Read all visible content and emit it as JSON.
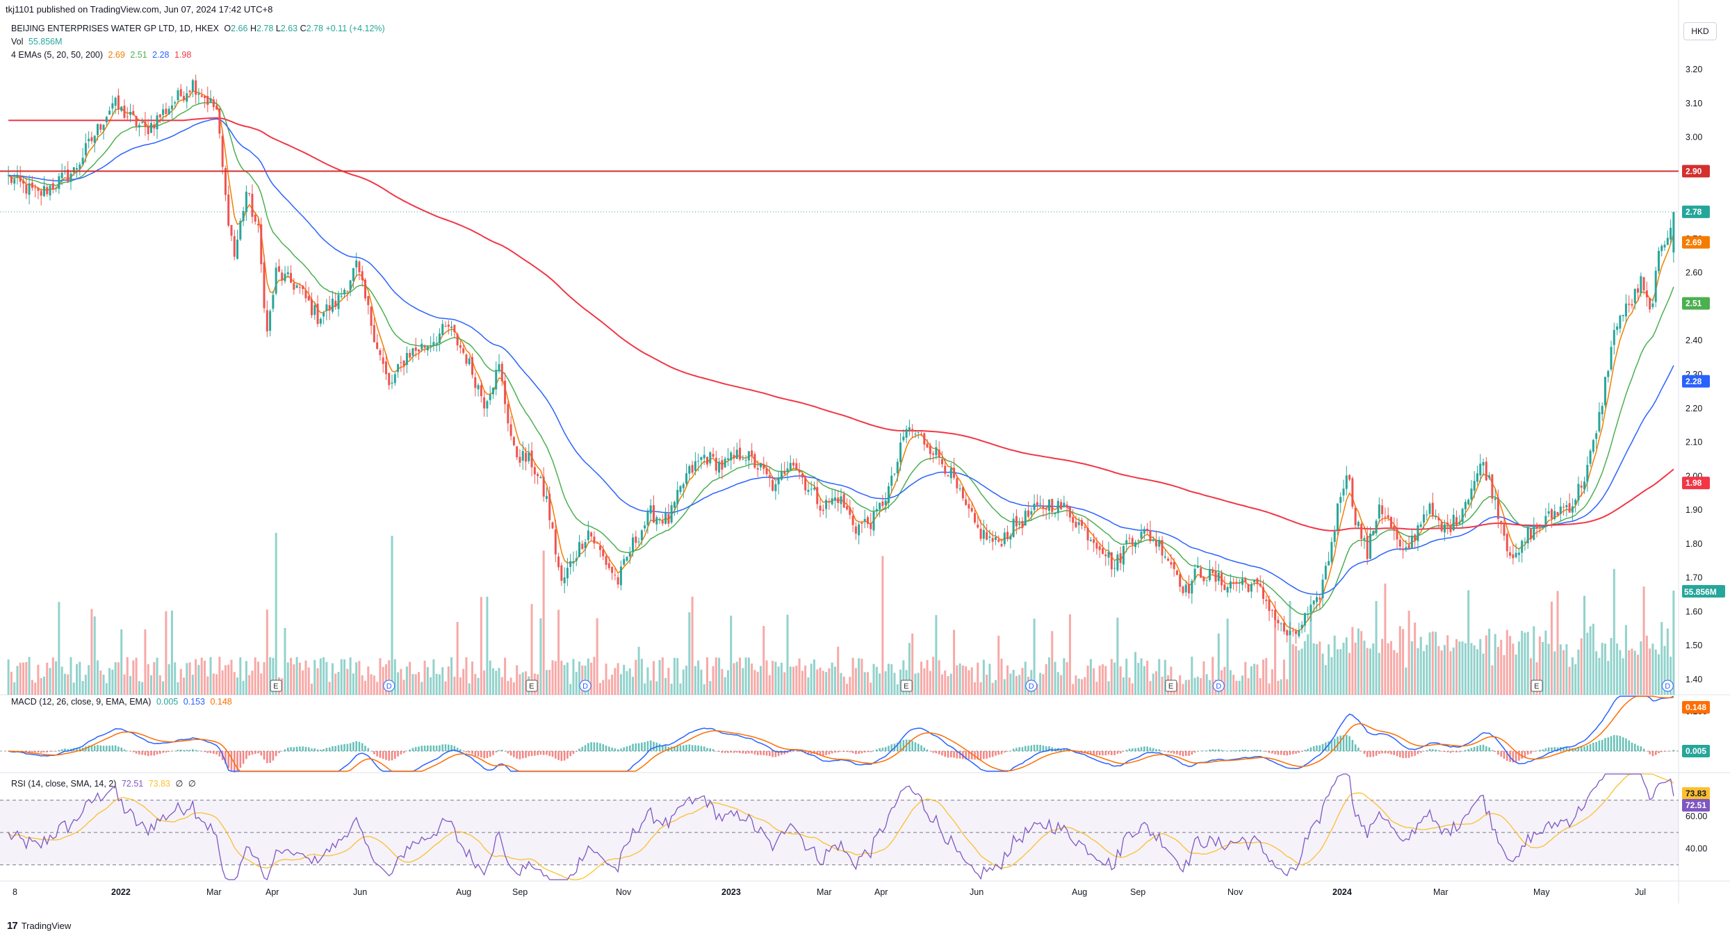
{
  "header": {
    "published": "tkj1101 published on TradingView.com, Jun 07, 2024 17:42 UTC+8",
    "symbol": "BEIJING ENTERPRISES WATER GP LTD, 1D, HKEX",
    "ohlc": {
      "o_label": "O",
      "o": "2.66",
      "h_label": "H",
      "h": "2.78",
      "l_label": "L",
      "l": "2.63",
      "c_label": "C",
      "c": "2.78",
      "change": "+0.11 (+4.12%)"
    },
    "vol_label": "Vol",
    "vol_value": "55.856M",
    "ema_label": "4 EMAs (5, 20, 50, 200)",
    "ema_values": [
      "2.69",
      "2.51",
      "2.28",
      "1.98"
    ],
    "currency": "HKD"
  },
  "macd_legend": {
    "label": "MACD (12, 26, close, 9, EMA, EMA)",
    "values": [
      "0.005",
      "0.153",
      "0.148"
    ]
  },
  "rsi_legend": {
    "label": "RSI (14, close, SMA, 14, 2)",
    "values": [
      "72.51",
      "73.83"
    ],
    "extra": [
      "∅",
      "∅"
    ]
  },
  "footer": {
    "brand": "TradingView",
    "logo_glyph": "17"
  },
  "colors": {
    "up": "#26a69a",
    "down": "#ef5350",
    "ema5": "#f57c00",
    "ema20": "#4caf50",
    "ema50": "#2962ff",
    "ema200": "#f23645",
    "resistance": "#d32f2f",
    "macd": "#2962ff",
    "signal": "#ff6d00",
    "rsi": "#7e57c2",
    "rsi_ma": "#fbc02d",
    "rsi_band": "#7e57c2"
  },
  "chart_data": [
    {
      "type": "candlestick",
      "panel": "price",
      "x_axis_labels": [
        "8",
        "2022",
        "Mar",
        "Apr",
        "Jun",
        "Aug",
        "Sep",
        "Nov",
        "2023",
        "Mar",
        "Apr",
        "Jun",
        "Aug",
        "Sep",
        "Nov",
        "2024",
        "Mar",
        "May",
        "Jul"
      ],
      "x_axis_date_range": [
        "2021-12",
        "2024-07"
      ],
      "y_ticks": [
        "3.20",
        "3.10",
        "3.00",
        "2.90",
        "2.80",
        "2.70",
        "2.60",
        "2.50",
        "2.40",
        "2.30",
        "2.20",
        "2.10",
        "2.00",
        "1.90",
        "1.80",
        "1.70",
        "1.60",
        "1.50",
        "1.40"
      ],
      "ylim": [
        1.35,
        3.25
      ],
      "close_path": [
        [
          0,
          2.88
        ],
        [
          10,
          2.83
        ],
        [
          22,
          2.9
        ],
        [
          35,
          3.1
        ],
        [
          46,
          3.02
        ],
        [
          54,
          3.09
        ],
        [
          62,
          3.16
        ],
        [
          70,
          3.08
        ],
        [
          73,
          2.82
        ],
        [
          76,
          2.65
        ],
        [
          80,
          2.84
        ],
        [
          84,
          2.72
        ],
        [
          87,
          2.42
        ],
        [
          90,
          2.6
        ],
        [
          97,
          2.56
        ],
        [
          104,
          2.47
        ],
        [
          111,
          2.52
        ],
        [
          117,
          2.62
        ],
        [
          123,
          2.42
        ],
        [
          128,
          2.26
        ],
        [
          134,
          2.36
        ],
        [
          141,
          2.39
        ],
        [
          148,
          2.44
        ],
        [
          154,
          2.35
        ],
        [
          160,
          2.22
        ],
        [
          165,
          2.32
        ],
        [
          170,
          2.07
        ],
        [
          176,
          2.04
        ],
        [
          181,
          1.93
        ],
        [
          186,
          1.68
        ],
        [
          190,
          1.76
        ],
        [
          195,
          1.84
        ],
        [
          200,
          1.76
        ],
        [
          205,
          1.69
        ],
        [
          210,
          1.8
        ],
        [
          216,
          1.89
        ],
        [
          222,
          1.87
        ],
        [
          228,
          2.0
        ],
        [
          234,
          2.06
        ],
        [
          240,
          2.03
        ],
        [
          247,
          2.07
        ],
        [
          253,
          2.02
        ],
        [
          258,
          1.96
        ],
        [
          263,
          2.06
        ],
        [
          268,
          1.98
        ],
        [
          274,
          1.91
        ],
        [
          279,
          1.94
        ],
        [
          285,
          1.85
        ],
        [
          291,
          1.87
        ],
        [
          297,
          1.98
        ],
        [
          302,
          2.14
        ],
        [
          306,
          2.12
        ],
        [
          311,
          2.08
        ],
        [
          316,
          2.02
        ],
        [
          321,
          1.92
        ],
        [
          326,
          1.84
        ],
        [
          332,
          1.8
        ],
        [
          338,
          1.85
        ],
        [
          344,
          1.89
        ],
        [
          350,
          1.92
        ],
        [
          356,
          1.9
        ],
        [
          362,
          1.84
        ],
        [
          368,
          1.79
        ],
        [
          372,
          1.73
        ],
        [
          377,
          1.82
        ],
        [
          383,
          1.83
        ],
        [
          388,
          1.79
        ],
        [
          392,
          1.73
        ],
        [
          396,
          1.66
        ],
        [
          400,
          1.72
        ],
        [
          405,
          1.7
        ],
        [
          410,
          1.68
        ],
        [
          415,
          1.69
        ],
        [
          420,
          1.67
        ],
        [
          424,
          1.62
        ],
        [
          428,
          1.55
        ],
        [
          432,
          1.52
        ],
        [
          436,
          1.58
        ],
        [
          440,
          1.62
        ],
        [
          444,
          1.76
        ],
        [
          448,
          1.95
        ],
        [
          450,
          2.02
        ],
        [
          453,
          1.88
        ],
        [
          457,
          1.77
        ],
        [
          461,
          1.92
        ],
        [
          465,
          1.85
        ],
        [
          469,
          1.76
        ],
        [
          473,
          1.83
        ],
        [
          477,
          1.91
        ],
        [
          482,
          1.84
        ],
        [
          487,
          1.87
        ],
        [
          492,
          1.97
        ],
        [
          496,
          2.04
        ],
        [
          500,
          1.93
        ],
        [
          504,
          1.8
        ],
        [
          507,
          1.75
        ],
        [
          511,
          1.83
        ],
        [
          516,
          1.86
        ],
        [
          521,
          1.9
        ],
        [
          526,
          1.92
        ],
        [
          530,
          2.0
        ],
        [
          534,
          2.12
        ],
        [
          538,
          2.33
        ],
        [
          541,
          2.46
        ],
        [
          545,
          2.5
        ],
        [
          549,
          2.57
        ],
        [
          552,
          2.48
        ],
        [
          555,
          2.64
        ],
        [
          558,
          2.72
        ],
        [
          560,
          2.78
        ]
      ],
      "ema_lines": [
        {
          "name": "EMA 5",
          "value_label": "2.69",
          "period": 5
        },
        {
          "name": "EMA 20",
          "value_label": "2.51",
          "period": 20
        },
        {
          "name": "EMA 50",
          "value_label": "2.28",
          "period": 50
        },
        {
          "name": "EMA 200",
          "value_label": "1.98",
          "period": 200
        }
      ],
      "horizontal_lines": [
        {
          "value": 2.9,
          "label": "2.90"
        }
      ],
      "last_price_line": {
        "value": 2.78,
        "label": "2.78"
      },
      "volume_label": "55.856M",
      "event_markers": [
        {
          "kind": "E",
          "bar": 90
        },
        {
          "kind": "D",
          "bar": 128
        },
        {
          "kind": "E",
          "bar": 176
        },
        {
          "kind": "D",
          "bar": 194
        },
        {
          "kind": "E",
          "bar": 302
        },
        {
          "kind": "D",
          "bar": 344
        },
        {
          "kind": "E",
          "bar": 391
        },
        {
          "kind": "D",
          "bar": 407
        },
        {
          "kind": "E",
          "bar": 514
        },
        {
          "kind": "D",
          "bar": 558
        }
      ]
    },
    {
      "type": "line",
      "panel": "macd",
      "y_ticks": [
        "0.100"
      ],
      "series": [
        {
          "name": "MACD",
          "last": "0.153"
        },
        {
          "name": "Signal",
          "last": "0.148"
        },
        {
          "name": "Histogram",
          "last": "0.005"
        }
      ]
    },
    {
      "type": "line",
      "panel": "rsi",
      "y_ticks": [
        "60.00",
        "40.00"
      ],
      "bands": [
        70,
        50,
        30
      ],
      "series": [
        {
          "name": "RSI",
          "last": "72.51"
        },
        {
          "name": "RSI-based MA",
          "last": "73.83"
        }
      ]
    }
  ]
}
